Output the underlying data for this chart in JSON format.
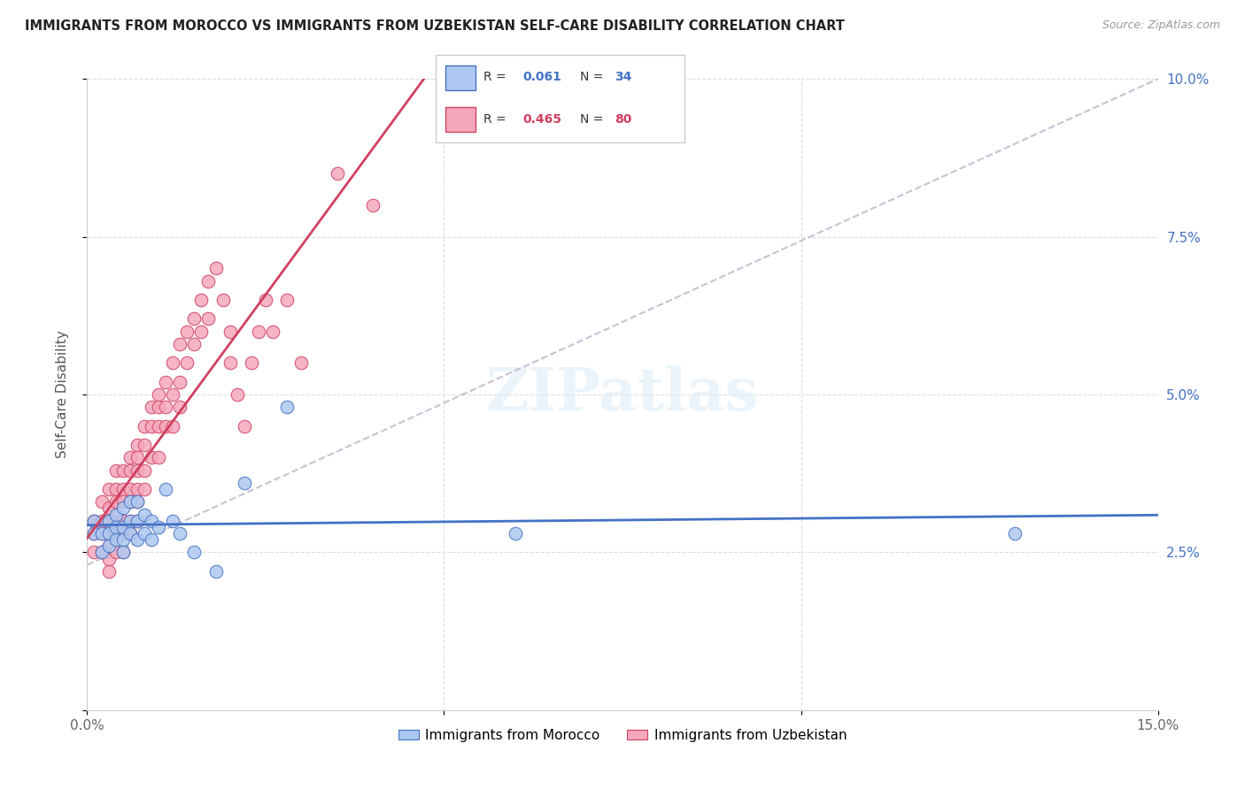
{
  "title": "IMMIGRANTS FROM MOROCCO VS IMMIGRANTS FROM UZBEKISTAN SELF-CARE DISABILITY CORRELATION CHART",
  "source": "Source: ZipAtlas.com",
  "ylabel": "Self-Care Disability",
  "xlim": [
    0.0,
    0.15
  ],
  "ylim": [
    0.0,
    0.1
  ],
  "r_morocco": 0.061,
  "n_morocco": 34,
  "r_uzbekistan": 0.465,
  "n_uzbekistan": 80,
  "morocco_color": "#adc8f0",
  "uzbekistan_color": "#f5a8bc",
  "morocco_line_color": "#4472c4",
  "uzbekistan_line_color": "#d04060",
  "diagonal_line_color": "#c0b0c8",
  "legend_labels": [
    "Immigrants from Morocco",
    "Immigrants from Uzbekistan"
  ],
  "morocco_x": [
    0.001,
    0.001,
    0.002,
    0.002,
    0.003,
    0.003,
    0.003,
    0.004,
    0.004,
    0.004,
    0.005,
    0.005,
    0.005,
    0.005,
    0.006,
    0.006,
    0.006,
    0.007,
    0.007,
    0.007,
    0.008,
    0.008,
    0.009,
    0.009,
    0.01,
    0.011,
    0.012,
    0.013,
    0.015,
    0.018,
    0.022,
    0.028,
    0.06,
    0.13
  ],
  "morocco_y": [
    0.03,
    0.028,
    0.028,
    0.025,
    0.03,
    0.028,
    0.026,
    0.031,
    0.029,
    0.027,
    0.032,
    0.029,
    0.027,
    0.025,
    0.033,
    0.03,
    0.028,
    0.033,
    0.03,
    0.027,
    0.031,
    0.028,
    0.03,
    0.027,
    0.029,
    0.035,
    0.03,
    0.028,
    0.025,
    0.022,
    0.036,
    0.048,
    0.028,
    0.028
  ],
  "uzbekistan_x": [
    0.001,
    0.001,
    0.001,
    0.002,
    0.002,
    0.002,
    0.002,
    0.003,
    0.003,
    0.003,
    0.003,
    0.003,
    0.003,
    0.003,
    0.004,
    0.004,
    0.004,
    0.004,
    0.004,
    0.004,
    0.005,
    0.005,
    0.005,
    0.005,
    0.005,
    0.005,
    0.006,
    0.006,
    0.006,
    0.006,
    0.006,
    0.006,
    0.007,
    0.007,
    0.007,
    0.007,
    0.007,
    0.007,
    0.008,
    0.008,
    0.008,
    0.008,
    0.009,
    0.009,
    0.009,
    0.01,
    0.01,
    0.01,
    0.01,
    0.011,
    0.011,
    0.011,
    0.012,
    0.012,
    0.012,
    0.013,
    0.013,
    0.013,
    0.014,
    0.014,
    0.015,
    0.015,
    0.016,
    0.016,
    0.017,
    0.017,
    0.018,
    0.019,
    0.02,
    0.02,
    0.021,
    0.022,
    0.023,
    0.024,
    0.025,
    0.026,
    0.028,
    0.03,
    0.035,
    0.04
  ],
  "uzbekistan_y": [
    0.03,
    0.028,
    0.025,
    0.033,
    0.03,
    0.028,
    0.025,
    0.035,
    0.032,
    0.03,
    0.028,
    0.026,
    0.024,
    0.022,
    0.038,
    0.035,
    0.033,
    0.03,
    0.028,
    0.025,
    0.038,
    0.035,
    0.033,
    0.03,
    0.028,
    0.025,
    0.04,
    0.038,
    0.035,
    0.033,
    0.03,
    0.028,
    0.042,
    0.04,
    0.038,
    0.035,
    0.033,
    0.03,
    0.045,
    0.042,
    0.038,
    0.035,
    0.048,
    0.045,
    0.04,
    0.05,
    0.048,
    0.045,
    0.04,
    0.052,
    0.048,
    0.045,
    0.055,
    0.05,
    0.045,
    0.058,
    0.052,
    0.048,
    0.06,
    0.055,
    0.062,
    0.058,
    0.065,
    0.06,
    0.068,
    0.062,
    0.07,
    0.065,
    0.06,
    0.055,
    0.05,
    0.045,
    0.055,
    0.06,
    0.065,
    0.06,
    0.065,
    0.055,
    0.085,
    0.08
  ]
}
